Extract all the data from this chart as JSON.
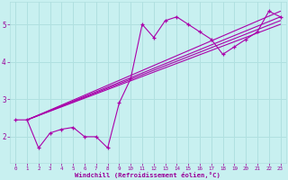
{
  "bg_color": "#c8f0f0",
  "grid_color": "#b0e0e0",
  "line_color": "#aa00aa",
  "xlabel": "Windchill (Refroidissement éolien,°C)",
  "xlabel_color": "#990099",
  "tick_color": "#990099",
  "xlim": [
    -0.5,
    23.5
  ],
  "ylim": [
    1.3,
    5.6
  ],
  "yticks": [
    2,
    3,
    4,
    5
  ],
  "xticks": [
    0,
    1,
    2,
    3,
    4,
    5,
    6,
    7,
    8,
    9,
    10,
    11,
    12,
    13,
    14,
    15,
    16,
    17,
    18,
    19,
    20,
    21,
    22,
    23
  ],
  "series1_x": [
    0,
    1,
    2,
    3,
    4,
    5,
    6,
    7,
    8,
    9,
    10,
    11,
    12,
    13,
    14,
    15,
    16,
    17,
    18,
    19,
    20,
    21,
    22,
    23
  ],
  "series1_y": [
    2.45,
    2.45,
    1.7,
    2.1,
    2.2,
    2.25,
    2.0,
    2.0,
    1.7,
    2.9,
    3.55,
    5.0,
    4.65,
    5.1,
    5.2,
    5.0,
    4.8,
    4.6,
    4.2,
    4.4,
    4.6,
    4.8,
    5.35,
    5.2
  ],
  "trend_lines": [
    {
      "x": [
        1,
        23
      ],
      "y": [
        2.45,
        5.2
      ]
    },
    {
      "x": [
        1,
        23
      ],
      "y": [
        2.45,
        5.0
      ]
    },
    {
      "x": [
        1,
        23
      ],
      "y": [
        2.45,
        5.35
      ]
    },
    {
      "x": [
        1,
        23
      ],
      "y": [
        2.45,
        5.1
      ]
    }
  ]
}
